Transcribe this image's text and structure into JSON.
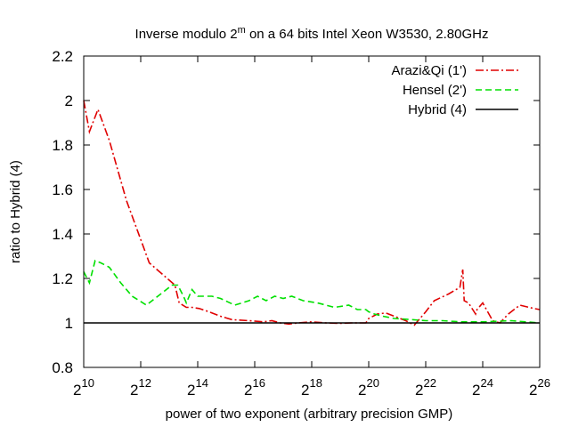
{
  "chart_data": {
    "type": "line",
    "title": {
      "prefix": "Inverse modulo 2",
      "superscript": "m",
      "suffix": " on a 64 bits Intel Xeon W3530, 2.80GHz"
    },
    "xlabel": "power of two exponent (arbitrary precision GMP)",
    "ylabel": "ratio to Hybrid (4)",
    "x_scale": "log2",
    "xlim": [
      10,
      26
    ],
    "ylim": [
      0.8,
      2.2
    ],
    "x_ticks": [
      {
        "base": "2",
        "exp": "10",
        "value": 10
      },
      {
        "base": "2",
        "exp": "12",
        "value": 12
      },
      {
        "base": "2",
        "exp": "14",
        "value": 14
      },
      {
        "base": "2",
        "exp": "16",
        "value": 16
      },
      {
        "base": "2",
        "exp": "18",
        "value": 18
      },
      {
        "base": "2",
        "exp": "20",
        "value": 20
      },
      {
        "base": "2",
        "exp": "22",
        "value": 22
      },
      {
        "base": "2",
        "exp": "24",
        "value": 24
      },
      {
        "base": "2",
        "exp": "26",
        "value": 26
      }
    ],
    "y_ticks": [
      {
        "label": "2.2",
        "value": 2.2
      },
      {
        "label": "2",
        "value": 2.0
      },
      {
        "label": "1.8",
        "value": 1.8
      },
      {
        "label": "1.6",
        "value": 1.6
      },
      {
        "label": "1.4",
        "value": 1.4
      },
      {
        "label": "1.2",
        "value": 1.2
      },
      {
        "label": "1",
        "value": 1.0
      },
      {
        "label": "0.8",
        "value": 0.8
      }
    ],
    "legend_position": "top-right",
    "series": [
      {
        "name": "Arazi&Qi (1')",
        "color": "#e00000",
        "dash": "dash-dot",
        "points": [
          [
            10.0,
            2.0
          ],
          [
            10.2,
            1.86
          ],
          [
            10.5,
            1.96
          ],
          [
            10.9,
            1.82
          ],
          [
            11.5,
            1.55
          ],
          [
            12.3,
            1.27
          ],
          [
            13.2,
            1.17
          ],
          [
            13.35,
            1.09
          ],
          [
            13.6,
            1.07
          ],
          [
            13.8,
            1.07
          ],
          [
            14.05,
            1.065
          ],
          [
            14.4,
            1.05
          ],
          [
            14.8,
            1.03
          ],
          [
            15.2,
            1.015
          ],
          [
            15.8,
            1.01
          ],
          [
            16.3,
            1.005
          ],
          [
            16.6,
            1.01
          ],
          [
            16.9,
            1.0
          ],
          [
            17.2,
            0.995
          ],
          [
            17.5,
            1.0
          ],
          [
            18.0,
            1.005
          ],
          [
            18.5,
            1.0
          ],
          [
            19.0,
            0.998
          ],
          [
            19.4,
            1.0
          ],
          [
            19.9,
            1.0
          ],
          [
            20.0,
            1.02
          ],
          [
            20.3,
            1.04
          ],
          [
            20.6,
            1.045
          ],
          [
            20.9,
            1.03
          ],
          [
            21.3,
            1.01
          ],
          [
            21.6,
            0.99
          ],
          [
            22.0,
            1.05
          ],
          [
            22.3,
            1.1
          ],
          [
            22.8,
            1.13
          ],
          [
            23.2,
            1.16
          ],
          [
            23.3,
            1.24
          ],
          [
            23.35,
            1.1
          ],
          [
            23.5,
            1.09
          ],
          [
            23.75,
            1.04
          ],
          [
            23.8,
            1.06
          ],
          [
            24.0,
            1.09
          ],
          [
            24.35,
            1.01
          ],
          [
            24.6,
            1.0
          ],
          [
            24.9,
            1.04
          ],
          [
            25.3,
            1.08
          ],
          [
            25.8,
            1.065
          ],
          [
            26.0,
            1.06
          ]
        ]
      },
      {
        "name": "Hensel (2')",
        "color": "#00e000",
        "dash": "dashed",
        "points": [
          [
            10.0,
            1.23
          ],
          [
            10.2,
            1.18
          ],
          [
            10.4,
            1.28
          ],
          [
            10.6,
            1.27
          ],
          [
            10.9,
            1.25
          ],
          [
            11.3,
            1.18
          ],
          [
            11.7,
            1.12
          ],
          [
            12.2,
            1.08
          ],
          [
            12.6,
            1.12
          ],
          [
            13.1,
            1.17
          ],
          [
            13.3,
            1.17
          ],
          [
            13.5,
            1.12
          ],
          [
            13.6,
            1.09
          ],
          [
            13.8,
            1.15
          ],
          [
            14.0,
            1.12
          ],
          [
            14.5,
            1.12
          ],
          [
            14.8,
            1.11
          ],
          [
            15.3,
            1.08
          ],
          [
            15.8,
            1.1
          ],
          [
            16.1,
            1.12
          ],
          [
            16.4,
            1.1
          ],
          [
            16.7,
            1.12
          ],
          [
            17.0,
            1.11
          ],
          [
            17.3,
            1.12
          ],
          [
            17.7,
            1.1
          ],
          [
            18.2,
            1.09
          ],
          [
            18.8,
            1.07
          ],
          [
            19.3,
            1.08
          ],
          [
            19.6,
            1.06
          ],
          [
            19.9,
            1.06
          ],
          [
            20.0,
            1.05
          ],
          [
            20.2,
            1.04
          ],
          [
            20.5,
            1.03
          ],
          [
            20.9,
            1.02
          ],
          [
            21.5,
            1.015
          ],
          [
            22.0,
            1.01
          ],
          [
            22.6,
            1.01
          ],
          [
            23.2,
            1.005
          ],
          [
            24.0,
            1.005
          ],
          [
            25.0,
            1.01
          ],
          [
            26.0,
            1.0
          ]
        ]
      },
      {
        "name": "Hybrid (4)",
        "color": "#000000",
        "dash": "solid",
        "points": [
          [
            10.0,
            1.0
          ],
          [
            26.0,
            1.0
          ]
        ]
      }
    ]
  }
}
